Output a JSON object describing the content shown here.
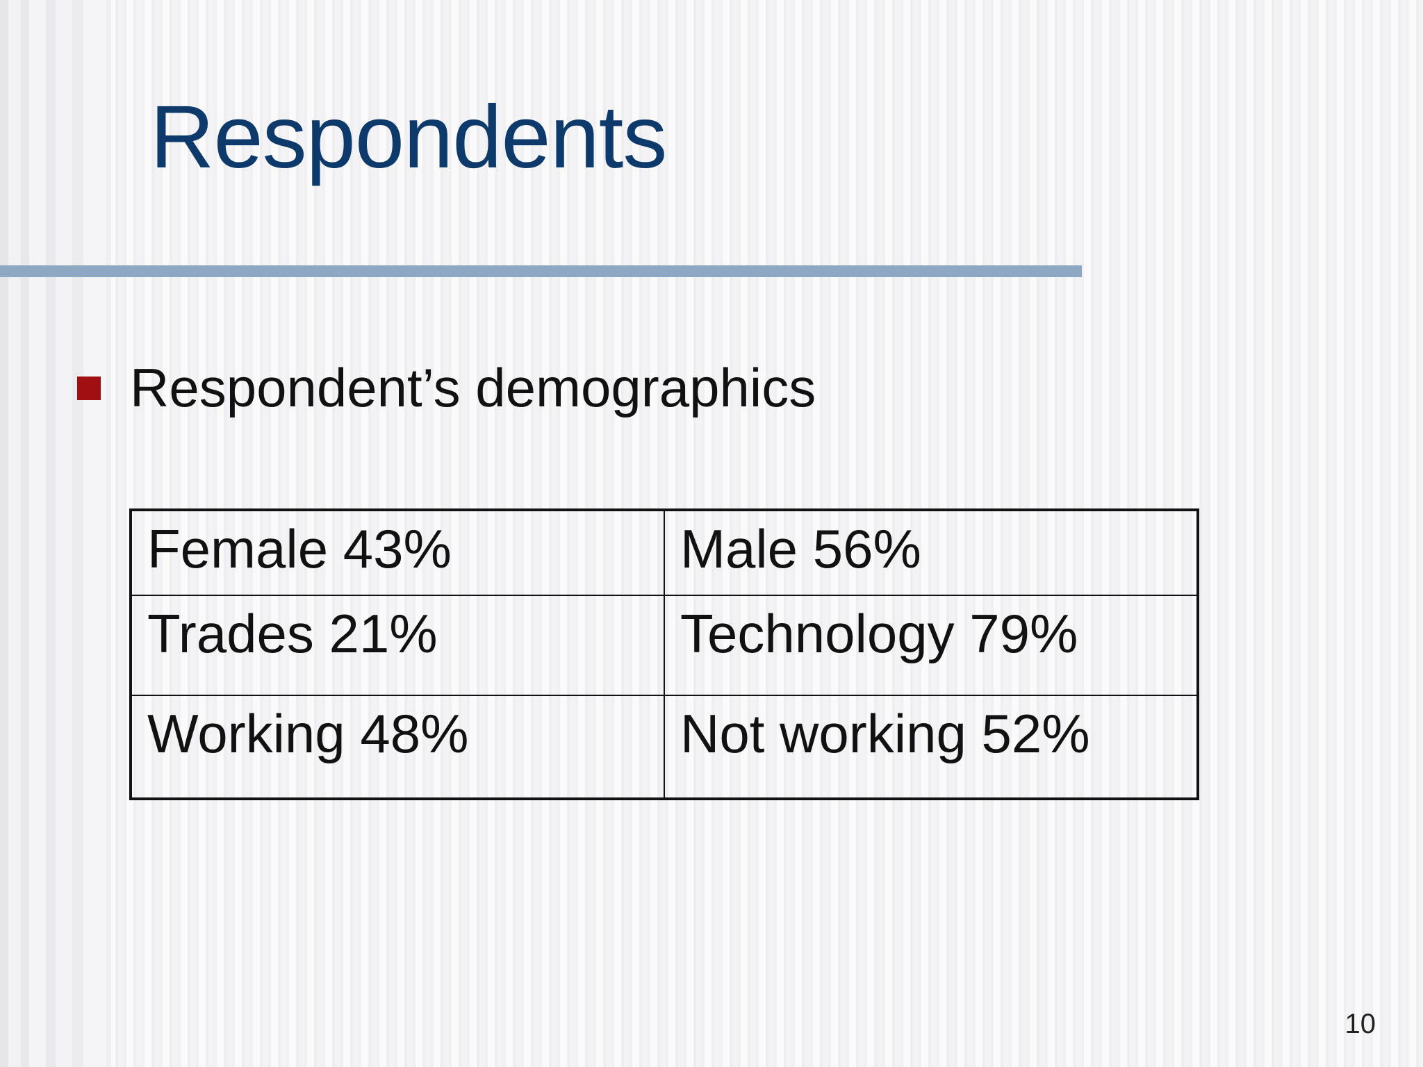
{
  "slide": {
    "title": "Respondents",
    "bullet": "Respondent’s demographics",
    "page_number": "10"
  },
  "table": {
    "rows": [
      [
        "Female 43%",
        "Male 56%"
      ],
      [
        "Trades 21%",
        "Technology 79%"
      ],
      [
        "Working 48%",
        "Not working 52%"
      ]
    ]
  },
  "colors": {
    "title": "#0d3a6b",
    "rule": "#8ea7c2",
    "bullet": "#a10f12",
    "background": "#f3f3f5"
  },
  "icons": {
    "bullet": "square-bullet-icon"
  }
}
